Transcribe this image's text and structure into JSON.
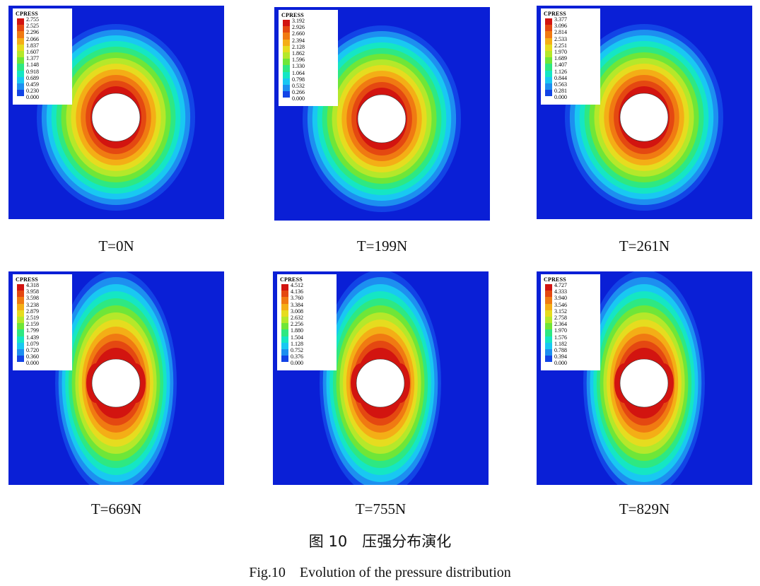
{
  "figure": {
    "caption_zh": "图 10　压强分布演化",
    "caption_en": "Fig.10　Evolution of the pressure distribution"
  },
  "colors": {
    "background": "#0a1fd6",
    "bands": [
      "#1244e6",
      "#1d8ff0",
      "#19c8f2",
      "#15e6c4",
      "#2ee882",
      "#6fe638",
      "#b5e82a",
      "#e6dc1f",
      "#f4ae16",
      "#f07a12",
      "#e44811",
      "#d21410"
    ]
  },
  "panels": [
    {
      "label": "T=0N",
      "legend_title": "CPRESS",
      "shape": "round",
      "ticks": [
        "2.755",
        "2.525",
        "2.296",
        "2.066",
        "1.837",
        "1.607",
        "1.377",
        "1.148",
        "0.918",
        "0.689",
        "0.459",
        "0.230",
        "0.000"
      ]
    },
    {
      "label": "T=199N",
      "legend_title": "CPRESS",
      "shape": "round",
      "ticks": [
        "3.192",
        "2.926",
        "2.660",
        "2.394",
        "2.128",
        "1.862",
        "1.596",
        "1.330",
        "1.064",
        "0.798",
        "0.532",
        "0.266",
        "0.000"
      ]
    },
    {
      "label": "T=261N",
      "legend_title": "CPRESS",
      "shape": "round",
      "ticks": [
        "3.377",
        "3.096",
        "2.814",
        "2.533",
        "2.251",
        "1.970",
        "1.689",
        "1.407",
        "1.126",
        "0.844",
        "0.563",
        "0.281",
        "0.000"
      ]
    },
    {
      "label": "T=669N",
      "legend_title": "CPRESS",
      "shape": "tall",
      "ticks": [
        "4.318",
        "3.958",
        "3.598",
        "3.238",
        "2.879",
        "2.519",
        "2.159",
        "1.799",
        "1.439",
        "1.079",
        "0.720",
        "0.360",
        "0.000"
      ]
    },
    {
      "label": "T=755N",
      "legend_title": "CPRESS",
      "shape": "tall",
      "ticks": [
        "4.512",
        "4.136",
        "3.760",
        "3.384",
        "3.008",
        "2.632",
        "2.256",
        "1.880",
        "1.504",
        "1.128",
        "0.752",
        "0.376",
        "0.000"
      ]
    },
    {
      "label": "T=829N",
      "legend_title": "CPRESS",
      "shape": "tall",
      "ticks": [
        "4.727",
        "4.333",
        "3.940",
        "3.546",
        "3.152",
        "2.758",
        "2.364",
        "1.970",
        "1.576",
        "1.182",
        "0.788",
        "0.394",
        "0.000"
      ]
    }
  ]
}
